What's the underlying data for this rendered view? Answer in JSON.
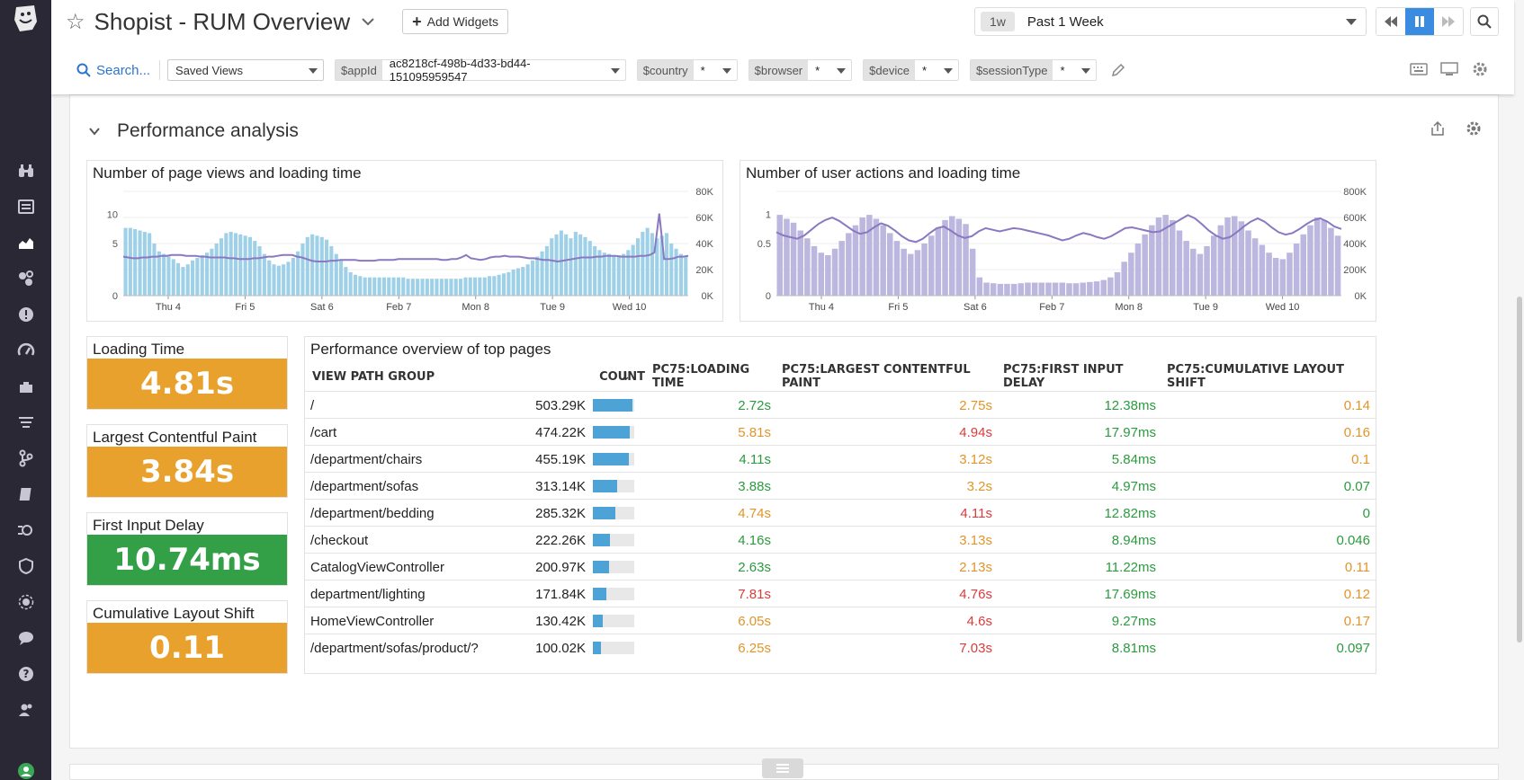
{
  "header": {
    "title": "Shopist - RUM Overview",
    "add_widgets": "Add Widgets",
    "time_badge": "1w",
    "time_range": "Past 1 Week"
  },
  "filters": {
    "search": "Search...",
    "saved_views": "Saved Views",
    "vars": [
      {
        "key": "$appId",
        "value": "ac8218cf-498b-4d33-bd44-151095959547"
      },
      {
        "key": "$country",
        "value": "*"
      },
      {
        "key": "$browser",
        "value": "*"
      },
      {
        "key": "$device",
        "value": "*"
      },
      {
        "key": "$sessionType",
        "value": "*"
      }
    ]
  },
  "group": {
    "title": "Performance analysis"
  },
  "chart_data": [
    {
      "type": "bar",
      "title": "Number of page views and loading time",
      "x_ticks": [
        "Thu 4",
        "Fri 5",
        "Sat 6",
        "Feb 7",
        "Mon 8",
        "Tue 9",
        "Wed 10"
      ],
      "y_left_ticks": [
        "0",
        "5",
        "10"
      ],
      "y_right_ticks": [
        "0K",
        "20K",
        "40K",
        "60K",
        "80K"
      ],
      "ylim_left": [
        0,
        10
      ],
      "ylim_right": [
        0,
        80000
      ],
      "color": "#9ed0e8",
      "line_color": "#8a78c0",
      "series": [
        {
          "name": "page views",
          "axis": "right",
          "type": "bar",
          "values": [
            52000,
            52000,
            51000,
            50000,
            49000,
            48000,
            40000,
            34000,
            32000,
            30000,
            28000,
            25000,
            22000,
            24000,
            27000,
            29000,
            31000,
            33000,
            36000,
            40000,
            44000,
            48000,
            49000,
            48000,
            47000,
            46000,
            45000,
            42000,
            38000,
            32000,
            27000,
            24000,
            23000,
            24000,
            26000,
            29000,
            34000,
            40000,
            45000,
            47000,
            46000,
            45000,
            43000,
            38000,
            32000,
            27000,
            22000,
            18000,
            16000,
            15000,
            14000,
            14000,
            14000,
            14000,
            14000,
            14000,
            14000,
            14000,
            14000,
            13000,
            13000,
            13000,
            13000,
            13000,
            13000,
            13000,
            13000,
            13000,
            13000,
            13000,
            13000,
            14000,
            14000,
            14000,
            14000,
            14000,
            15000,
            15000,
            16000,
            17000,
            18000,
            20000,
            21000,
            22000,
            24000,
            27000,
            30000,
            34000,
            38000,
            44000,
            47000,
            50000,
            47000,
            44000,
            49000,
            47000,
            45000,
            42000,
            38000,
            35000,
            33000,
            32000,
            31000,
            31000,
            32000,
            35000,
            39000,
            44000,
            49000,
            52000,
            48000,
            44000,
            46000,
            48000,
            40000,
            36000,
            32000,
            30000
          ]
        },
        {
          "name": "loading time",
          "axis": "left",
          "type": "line",
          "values": [
            4.8,
            4.7,
            4.6,
            4.6,
            4.7,
            4.7,
            4.8,
            4.8,
            4.9,
            4.9,
            5.0,
            5.0,
            5.0,
            4.9,
            4.9,
            4.9,
            4.8,
            4.8,
            4.7,
            4.7,
            4.7,
            4.7,
            4.6,
            4.6,
            4.5,
            4.5,
            4.5,
            4.6,
            4.6,
            4.7,
            4.8,
            4.8,
            4.9,
            5.0,
            5.0,
            5.0,
            4.8,
            4.7,
            4.5,
            4.3,
            4.2,
            4.2,
            4.2,
            4.3,
            4.3,
            4.4,
            4.4,
            4.4,
            4.4,
            4.3,
            4.3,
            4.3,
            4.3,
            4.4,
            4.4,
            4.4,
            4.4,
            4.5,
            4.5,
            4.5,
            4.5,
            4.5,
            4.5,
            4.5,
            4.5,
            4.5,
            4.4,
            4.4,
            4.5,
            4.5,
            4.7,
            5.0,
            4.6,
            4.5,
            4.4,
            4.5,
            4.7,
            4.8,
            4.8,
            4.9,
            4.8,
            4.8,
            4.8,
            4.7,
            4.6,
            4.6,
            4.5,
            4.4,
            4.4,
            4.3,
            4.2,
            4.3,
            4.4,
            4.5,
            4.6,
            4.7,
            4.7,
            4.7,
            4.8,
            4.8,
            4.9,
            4.9,
            4.9,
            4.8,
            4.8,
            4.8,
            4.8,
            4.9,
            4.9,
            5.0,
            5.3,
            10.1,
            4.5,
            4.5,
            4.6,
            4.8,
            4.8,
            4.9
          ]
        }
      ]
    },
    {
      "type": "bar",
      "title": "Number of user actions and loading time",
      "x_ticks": [
        "Thu 4",
        "Fri 5",
        "Sat 6",
        "Feb 7",
        "Mon 8",
        "Tue 9",
        "Wed 10"
      ],
      "y_left_ticks": [
        "0",
        "0.5",
        "1"
      ],
      "y_right_ticks": [
        "0K",
        "200K",
        "400K",
        "600K",
        "800K"
      ],
      "ylim_left": [
        0,
        1
      ],
      "ylim_right": [
        0,
        800000
      ],
      "color": "#bcb7de",
      "line_color": "#8a78c0",
      "series": [
        {
          "name": "user actions",
          "axis": "right",
          "type": "bar",
          "values": [
            620000,
            590000,
            560000,
            500000,
            440000,
            380000,
            330000,
            310000,
            360000,
            420000,
            480000,
            540000,
            600000,
            620000,
            590000,
            540000,
            480000,
            420000,
            360000,
            320000,
            350000,
            400000,
            460000,
            520000,
            580000,
            610000,
            590000,
            550000,
            360000,
            140000,
            100000,
            95000,
            90000,
            90000,
            90000,
            95000,
            100000,
            100000,
            100000,
            100000,
            100000,
            100000,
            95000,
            95000,
            100000,
            105000,
            110000,
            120000,
            140000,
            180000,
            260000,
            330000,
            400000,
            470000,
            540000,
            600000,
            620000,
            580000,
            500000,
            420000,
            360000,
            320000,
            380000,
            460000,
            540000,
            600000,
            610000,
            570000,
            500000,
            440000,
            390000,
            330000,
            290000,
            280000,
            330000,
            400000,
            470000,
            540000,
            600000,
            580000,
            520000,
            460000
          ]
        },
        {
          "name": "loading time",
          "axis": "left",
          "type": "line",
          "values": [
            0.78,
            0.74,
            0.72,
            0.7,
            0.74,
            0.81,
            0.88,
            0.93,
            0.96,
            0.92,
            0.86,
            0.8,
            0.76,
            0.78,
            0.84,
            0.89,
            0.86,
            0.8,
            0.73,
            0.68,
            0.66,
            0.7,
            0.77,
            0.83,
            0.85,
            0.8,
            0.74,
            0.71,
            0.73,
            0.79,
            0.83,
            0.81,
            0.79,
            0.81,
            0.83,
            0.82,
            0.8,
            0.78,
            0.76,
            0.74,
            0.71,
            0.68,
            0.7,
            0.74,
            0.77,
            0.75,
            0.72,
            0.7,
            0.73,
            0.78,
            0.83,
            0.84,
            0.82,
            0.8,
            0.78,
            0.79,
            0.84,
            0.89,
            0.94,
            0.99,
            0.95,
            0.88,
            0.8,
            0.74,
            0.7,
            0.72,
            0.78,
            0.85,
            0.91,
            0.95,
            0.91,
            0.84,
            0.78,
            0.75,
            0.77,
            0.82,
            0.88,
            0.93,
            0.95,
            0.91,
            0.85,
            0.82
          ]
        }
      ]
    }
  ],
  "query_values": [
    {
      "title": "Loading Time",
      "value": "4.81s",
      "color": "#e8a12c"
    },
    {
      "title": "Largest Contentful Paint",
      "value": "3.84s",
      "color": "#e8a12c"
    },
    {
      "title": "First Input Delay",
      "value": "10.74ms",
      "color": "#33a047"
    },
    {
      "title": "Cumulative Layout Shift",
      "value": "0.11",
      "color": "#e8a12c"
    }
  ],
  "table": {
    "title": "Performance overview of top pages",
    "sort_icon": "↓",
    "columns": [
      "VIEW PATH GROUP",
      "COUNT",
      "PC75:LOADING TIME",
      "PC75:LARGEST CONTENTFUL PAINT",
      "PC75:FIRST INPUT DELAY",
      "PC75:CUMULATIVE LAYOUT SHIFT"
    ],
    "colors": {
      "green": "#2c9a3f",
      "orange": "#e0952b",
      "red": "#d93d3d"
    },
    "rows": [
      {
        "path": "/",
        "count": "503.29K",
        "count_value": 503290,
        "loading": "2.72s",
        "loading_c": "green",
        "lcp": "2.75s",
        "lcp_c": "orange",
        "fid": "12.38ms",
        "fid_c": "green",
        "cls": "0.14",
        "cls_c": "orange"
      },
      {
        "path": "/cart",
        "count": "474.22K",
        "count_value": 474220,
        "loading": "5.81s",
        "loading_c": "orange",
        "lcp": "4.94s",
        "lcp_c": "red",
        "fid": "17.97ms",
        "fid_c": "green",
        "cls": "0.16",
        "cls_c": "orange"
      },
      {
        "path": "/department/chairs",
        "count": "455.19K",
        "count_value": 455190,
        "loading": "4.11s",
        "loading_c": "green",
        "lcp": "3.12s",
        "lcp_c": "orange",
        "fid": "5.84ms",
        "fid_c": "green",
        "cls": "0.1",
        "cls_c": "orange"
      },
      {
        "path": "/department/sofas",
        "count": "313.14K",
        "count_value": 313140,
        "loading": "3.88s",
        "loading_c": "green",
        "lcp": "3.2s",
        "lcp_c": "orange",
        "fid": "4.97ms",
        "fid_c": "green",
        "cls": "0.07",
        "cls_c": "green"
      },
      {
        "path": "/department/bedding",
        "count": "285.32K",
        "count_value": 285320,
        "loading": "4.74s",
        "loading_c": "orange",
        "lcp": "4.11s",
        "lcp_c": "red",
        "fid": "12.82ms",
        "fid_c": "green",
        "cls": "0",
        "cls_c": "green"
      },
      {
        "path": "/checkout",
        "count": "222.26K",
        "count_value": 222260,
        "loading": "4.16s",
        "loading_c": "green",
        "lcp": "3.13s",
        "lcp_c": "orange",
        "fid": "8.94ms",
        "fid_c": "green",
        "cls": "0.046",
        "cls_c": "green"
      },
      {
        "path": "CatalogViewController",
        "count": "200.97K",
        "count_value": 200970,
        "loading": "2.63s",
        "loading_c": "green",
        "lcp": "2.13s",
        "lcp_c": "orange",
        "fid": "11.22ms",
        "fid_c": "green",
        "cls": "0.11",
        "cls_c": "orange"
      },
      {
        "path": "department/lighting",
        "count": "171.84K",
        "count_value": 171840,
        "loading": "7.81s",
        "loading_c": "red",
        "lcp": "4.76s",
        "lcp_c": "red",
        "fid": "17.69ms",
        "fid_c": "green",
        "cls": "0.12",
        "cls_c": "orange"
      },
      {
        "path": "HomeViewController",
        "count": "130.42K",
        "count_value": 130420,
        "loading": "6.05s",
        "loading_c": "orange",
        "lcp": "4.6s",
        "lcp_c": "red",
        "fid": "9.27ms",
        "fid_c": "green",
        "cls": "0.17",
        "cls_c": "orange"
      },
      {
        "path": "/department/sofas/product/?",
        "count": "100.02K",
        "count_value": 100020,
        "loading": "6.25s",
        "loading_c": "orange",
        "lcp": "7.03s",
        "lcp_c": "red",
        "fid": "8.81ms",
        "fid_c": "green",
        "cls": "0.097",
        "cls_c": "green"
      }
    ]
  },
  "icons": {
    "sidebar": [
      "binoculars-icon",
      "list-icon",
      "dashboards-icon",
      "infrastructure-icon",
      "monitors-icon",
      "apm-icon",
      "integrations-icon",
      "logs-icon",
      "ci-icon",
      "notebooks-icon",
      "synthetics-icon",
      "security-icon",
      "rum-icon",
      "chat-icon",
      "help-icon",
      "team-icon",
      "user-avatar-icon"
    ]
  }
}
